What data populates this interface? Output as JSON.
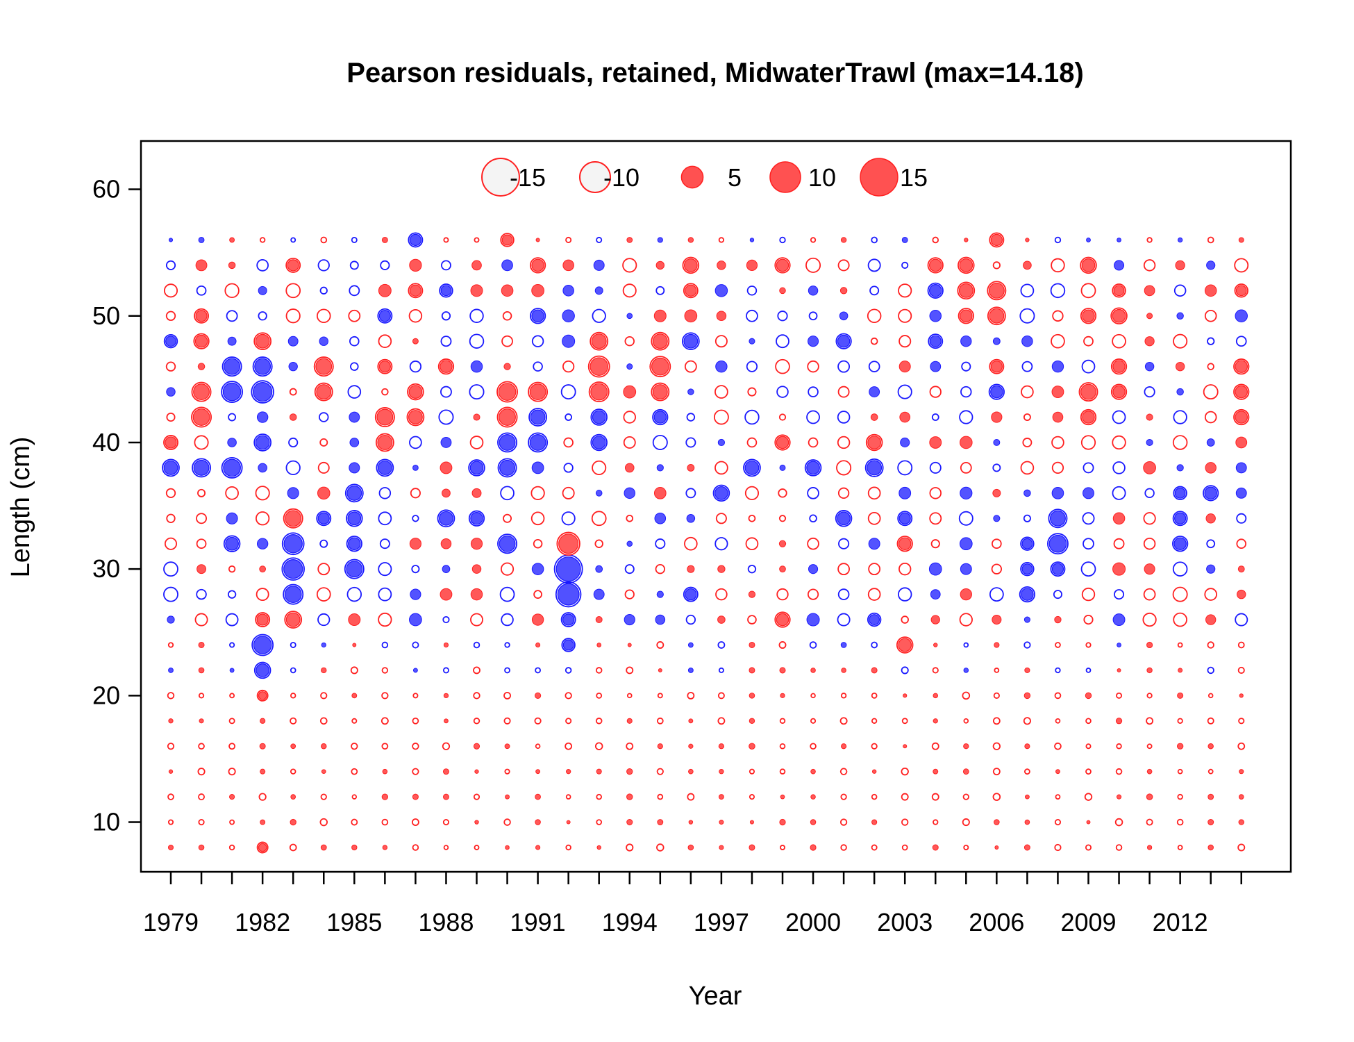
{
  "chart_data": {
    "type": "scatter",
    "subtype": "bubble",
    "title": "Pearson residuals, retained, MidwaterTrawl (max=14.18)",
    "xlabel": "Year",
    "ylabel": "Length (cm)",
    "xlim": [
      1978,
      2015
    ],
    "ylim": [
      6,
      64
    ],
    "x_tick_labels": [
      "1979",
      "1982",
      "1985",
      "1988",
      "1991",
      "1994",
      "1997",
      "2000",
      "2003",
      "2006",
      "2009",
      "2012"
    ],
    "x_tick_positions": [
      1979,
      1980,
      1981,
      1982,
      1983,
      1984,
      1985,
      1986,
      1987,
      1988,
      1989,
      1990,
      1991,
      1992,
      1993,
      1994,
      1995,
      1996,
      1997,
      1998,
      1999,
      2000,
      2001,
      2002,
      2003,
      2004,
      2005,
      2006,
      2007,
      2008,
      2009,
      2010,
      2011,
      2012,
      2013,
      2014
    ],
    "y_tick_labels": [
      "10",
      "20",
      "30",
      "40",
      "50",
      "60"
    ],
    "y_tick_values": [
      10,
      20,
      30,
      40,
      50,
      60
    ],
    "max_residual": 14.18,
    "legend": {
      "placement": "top-center",
      "entries": [
        {
          "label": "-15",
          "value": -15
        },
        {
          "label": "-10",
          "value": -10
        },
        {
          "label": "5",
          "value": 5
        },
        {
          "label": "10",
          "value": 10
        },
        {
          "label": "15",
          "value": 15
        }
      ]
    },
    "colors": {
      "positive": "#ff2020",
      "negative": "#1a1aff",
      "expected_fill": "#f4f4f4",
      "observed_fill_pos": "#ff3333",
      "observed_fill_neg": "#2626ff"
    },
    "years": [
      1979,
      1980,
      1981,
      1982,
      1983,
      1984,
      1985,
      1986,
      1987,
      1988,
      1989,
      1990,
      1991,
      1992,
      1993,
      1994,
      1995,
      1996,
      1997,
      1998,
      1999,
      2000,
      2001,
      2002,
      2003,
      2004,
      2005,
      2006,
      2007,
      2008,
      2009,
      2010,
      2011,
      2012,
      2013,
      2014
    ],
    "length_bins": [
      8,
      10,
      12,
      14,
      16,
      18,
      20,
      22,
      24,
      26,
      28,
      30,
      32,
      34,
      36,
      38,
      40,
      42,
      44,
      46,
      48,
      50,
      52,
      54,
      56
    ],
    "points": [
      {
        "year": 1979,
        "length": 38,
        "residual": -4.5
      },
      {
        "year": 1979,
        "length": 40,
        "residual": 3.0
      },
      {
        "year": 1979,
        "length": 48,
        "residual": -2.5
      },
      {
        "year": 1980,
        "length": 44,
        "residual": 6.0
      },
      {
        "year": 1980,
        "length": 42,
        "residual": 6.5
      },
      {
        "year": 1980,
        "length": 38,
        "residual": -5.5
      },
      {
        "year": 1980,
        "length": 48,
        "residual": 3.5
      },
      {
        "year": 1980,
        "length": 50,
        "residual": 3.0
      },
      {
        "year": 1981,
        "length": 44,
        "residual": -7.5
      },
      {
        "year": 1981,
        "length": 46,
        "residual": -6.0
      },
      {
        "year": 1981,
        "length": 38,
        "residual": -7.0
      },
      {
        "year": 1981,
        "length": 32,
        "residual": -4.0
      },
      {
        "year": 1982,
        "length": 44,
        "residual": -8.5
      },
      {
        "year": 1982,
        "length": 46,
        "residual": -6.0
      },
      {
        "year": 1982,
        "length": 48,
        "residual": 4.5
      },
      {
        "year": 1982,
        "length": 24,
        "residual": -7.5
      },
      {
        "year": 1982,
        "length": 22,
        "residual": -4.0
      },
      {
        "year": 1982,
        "length": 26,
        "residual": 3.0
      },
      {
        "year": 1982,
        "length": 40,
        "residual": -4.5
      },
      {
        "year": 1982,
        "length": 20,
        "residual": 1.5
      },
      {
        "year": 1982,
        "length": 8,
        "residual": 1.5
      },
      {
        "year": 1983,
        "length": 32,
        "residual": -8.0
      },
      {
        "year": 1983,
        "length": 30,
        "residual": -8.5
      },
      {
        "year": 1983,
        "length": 28,
        "residual": -6.5
      },
      {
        "year": 1983,
        "length": 34,
        "residual": 6.0
      },
      {
        "year": 1983,
        "length": 26,
        "residual": 4.5
      },
      {
        "year": 1983,
        "length": 54,
        "residual": 3.0
      },
      {
        "year": 1984,
        "length": 46,
        "residual": 6.0
      },
      {
        "year": 1984,
        "length": 44,
        "residual": 5.0
      },
      {
        "year": 1984,
        "length": 34,
        "residual": -3.0
      },
      {
        "year": 1985,
        "length": 30,
        "residual": -6.0
      },
      {
        "year": 1985,
        "length": 36,
        "residual": -5.0
      },
      {
        "year": 1985,
        "length": 34,
        "residual": -4.0
      },
      {
        "year": 1985,
        "length": 32,
        "residual": -3.5
      },
      {
        "year": 1986,
        "length": 42,
        "residual": 6.0
      },
      {
        "year": 1986,
        "length": 40,
        "residual": 5.0
      },
      {
        "year": 1986,
        "length": 38,
        "residual": -4.5
      },
      {
        "year": 1986,
        "length": 50,
        "residual": -3.0
      },
      {
        "year": 1986,
        "length": 46,
        "residual": 3.0
      },
      {
        "year": 1987,
        "length": 56,
        "residual": -3.0
      },
      {
        "year": 1987,
        "length": 44,
        "residual": 4.0
      },
      {
        "year": 1987,
        "length": 42,
        "residual": 4.5
      },
      {
        "year": 1987,
        "length": 52,
        "residual": 3.0
      },
      {
        "year": 1988,
        "length": 34,
        "residual": -4.5
      },
      {
        "year": 1988,
        "length": 46,
        "residual": 3.5
      },
      {
        "year": 1988,
        "length": 52,
        "residual": -2.5
      },
      {
        "year": 1989,
        "length": 38,
        "residual": -4.0
      },
      {
        "year": 1989,
        "length": 34,
        "residual": -3.5
      },
      {
        "year": 1990,
        "length": 44,
        "residual": 7.0
      },
      {
        "year": 1990,
        "length": 42,
        "residual": 6.5
      },
      {
        "year": 1990,
        "length": 40,
        "residual": -6.0
      },
      {
        "year": 1990,
        "length": 38,
        "residual": -5.5
      },
      {
        "year": 1990,
        "length": 32,
        "residual": -6.0
      },
      {
        "year": 1990,
        "length": 56,
        "residual": 2.5
      },
      {
        "year": 1991,
        "length": 44,
        "residual": 6.0
      },
      {
        "year": 1991,
        "length": 40,
        "residual": -6.0
      },
      {
        "year": 1991,
        "length": 42,
        "residual": -5.0
      },
      {
        "year": 1991,
        "length": 50,
        "residual": -3.5
      },
      {
        "year": 1991,
        "length": 54,
        "residual": 3.5
      },
      {
        "year": 1992,
        "length": 30,
        "residual": -14.18
      },
      {
        "year": 1992,
        "length": 28,
        "residual": -11.0
      },
      {
        "year": 1992,
        "length": 32,
        "residual": 9.0
      },
      {
        "year": 1992,
        "length": 26,
        "residual": -3.0
      },
      {
        "year": 1992,
        "length": 24,
        "residual": -2.5
      },
      {
        "year": 1993,
        "length": 46,
        "residual": 7.5
      },
      {
        "year": 1993,
        "length": 44,
        "residual": 6.5
      },
      {
        "year": 1993,
        "length": 48,
        "residual": 5.0
      },
      {
        "year": 1993,
        "length": 42,
        "residual": -4.0
      },
      {
        "year": 1993,
        "length": 40,
        "residual": -4.0
      },
      {
        "year": 1995,
        "length": 46,
        "residual": 7.0
      },
      {
        "year": 1995,
        "length": 48,
        "residual": 5.0
      },
      {
        "year": 1995,
        "length": 44,
        "residual": 5.0
      },
      {
        "year": 1995,
        "length": 42,
        "residual": -3.5
      },
      {
        "year": 1996,
        "length": 54,
        "residual": 4.0
      },
      {
        "year": 1996,
        "length": 52,
        "residual": 3.0
      },
      {
        "year": 1996,
        "length": 48,
        "residual": -4.5
      },
      {
        "year": 1996,
        "length": 28,
        "residual": -3.0
      },
      {
        "year": 1997,
        "length": 36,
        "residual": -4.0
      },
      {
        "year": 1998,
        "length": 38,
        "residual": -4.5
      },
      {
        "year": 1999,
        "length": 54,
        "residual": 3.5
      },
      {
        "year": 1999,
        "length": 26,
        "residual": 3.5
      },
      {
        "year": 1999,
        "length": 40,
        "residual": 3.5
      },
      {
        "year": 2000,
        "length": 38,
        "residual": -4.0
      },
      {
        "year": 2001,
        "length": 48,
        "residual": -3.5
      },
      {
        "year": 2001,
        "length": 34,
        "residual": -4.0
      },
      {
        "year": 2002,
        "length": 38,
        "residual": -5.0
      },
      {
        "year": 2002,
        "length": 40,
        "residual": 4.0
      },
      {
        "year": 2002,
        "length": 26,
        "residual": -2.5
      },
      {
        "year": 2003,
        "length": 24,
        "residual": 4.0
      },
      {
        "year": 2003,
        "length": 32,
        "residual": 3.5
      },
      {
        "year": 2003,
        "length": 34,
        "residual": -3.0
      },
      {
        "year": 2004,
        "length": 54,
        "residual": 3.5
      },
      {
        "year": 2004,
        "length": 52,
        "residual": -3.5
      },
      {
        "year": 2004,
        "length": 48,
        "residual": -3.0
      },
      {
        "year": 2005,
        "length": 54,
        "residual": 4.0
      },
      {
        "year": 2005,
        "length": 52,
        "residual": 4.5
      },
      {
        "year": 2005,
        "length": 50,
        "residual": 3.5
      },
      {
        "year": 2006,
        "length": 52,
        "residual": 5.5
      },
      {
        "year": 2006,
        "length": 50,
        "residual": 5.0
      },
      {
        "year": 2006,
        "length": 56,
        "residual": 3.0
      },
      {
        "year": 2006,
        "length": 46,
        "residual": 3.0
      },
      {
        "year": 2006,
        "length": 44,
        "residual": -3.5
      },
      {
        "year": 2007,
        "length": 28,
        "residual": -3.5
      },
      {
        "year": 2007,
        "length": 30,
        "residual": -2.5
      },
      {
        "year": 2007,
        "length": 32,
        "residual": -2.5
      },
      {
        "year": 2008,
        "length": 32,
        "residual": -7.0
      },
      {
        "year": 2008,
        "length": 34,
        "residual": -5.5
      },
      {
        "year": 2008,
        "length": 30,
        "residual": -3.0
      },
      {
        "year": 2009,
        "length": 54,
        "residual": 4.0
      },
      {
        "year": 2009,
        "length": 44,
        "residual": 5.5
      },
      {
        "year": 2009,
        "length": 42,
        "residual": 3.5
      },
      {
        "year": 2009,
        "length": 50,
        "residual": 3.5
      },
      {
        "year": 2010,
        "length": 50,
        "residual": 4.0
      },
      {
        "year": 2010,
        "length": 46,
        "residual": 3.5
      },
      {
        "year": 2010,
        "length": 44,
        "residual": 3.5
      },
      {
        "year": 2010,
        "length": 52,
        "residual": 2.5
      },
      {
        "year": 2012,
        "length": 32,
        "residual": -3.5
      },
      {
        "year": 2012,
        "length": 34,
        "residual": -3.0
      },
      {
        "year": 2012,
        "length": 36,
        "residual": -2.5
      },
      {
        "year": 2013,
        "length": 36,
        "residual": -3.5
      },
      {
        "year": 2014,
        "length": 46,
        "residual": 3.5
      },
      {
        "year": 2014,
        "length": 44,
        "residual": 3.5
      },
      {
        "year": 2014,
        "length": 42,
        "residual": 3.5
      },
      {
        "year": 2014,
        "length": 52,
        "residual": 2.5
      }
    ]
  }
}
